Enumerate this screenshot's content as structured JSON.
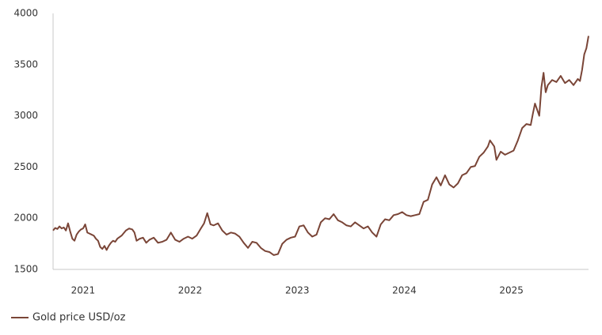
{
  "chart_data": {
    "type": "line",
    "x": [
      2020.72,
      2020.74,
      2020.76,
      2020.78,
      2020.8,
      2020.82,
      2020.84,
      2020.86,
      2020.88,
      2020.9,
      2020.92,
      2020.94,
      2020.96,
      2020.98,
      2021.0,
      2021.02,
      2021.04,
      2021.06,
      2021.08,
      2021.1,
      2021.12,
      2021.14,
      2021.16,
      2021.18,
      2021.2,
      2021.22,
      2021.24,
      2021.26,
      2021.28,
      2021.3,
      2021.32,
      2021.36,
      2021.4,
      2021.43,
      2021.46,
      2021.48,
      2021.5,
      2021.53,
      2021.56,
      2021.59,
      2021.62,
      2021.66,
      2021.7,
      2021.74,
      2021.78,
      2021.82,
      2021.86,
      2021.9,
      2021.94,
      2021.98,
      2022.02,
      2022.06,
      2022.1,
      2022.13,
      2022.16,
      2022.19,
      2022.22,
      2022.26,
      2022.3,
      2022.34,
      2022.38,
      2022.42,
      2022.46,
      2022.5,
      2022.54,
      2022.58,
      2022.62,
      2022.66,
      2022.7,
      2022.74,
      2022.78,
      2022.82,
      2022.86,
      2022.9,
      2022.94,
      2022.98,
      2023.02,
      2023.06,
      2023.1,
      2023.14,
      2023.18,
      2023.22,
      2023.26,
      2023.3,
      2023.34,
      2023.38,
      2023.42,
      2023.46,
      2023.5,
      2023.54,
      2023.58,
      2023.62,
      2023.66,
      2023.7,
      2023.74,
      2023.78,
      2023.82,
      2023.86,
      2023.9,
      2023.94,
      2023.98,
      2024.02,
      2024.06,
      2024.1,
      2024.14,
      2024.18,
      2024.22,
      2024.26,
      2024.3,
      2024.34,
      2024.38,
      2024.42,
      2024.46,
      2024.5,
      2024.54,
      2024.58,
      2024.62,
      2024.66,
      2024.7,
      2024.74,
      2024.78,
      2024.8,
      2024.84,
      2024.86,
      2024.9,
      2024.94,
      2024.98,
      2025.02,
      2025.06,
      2025.1,
      2025.14,
      2025.18,
      2025.2,
      2025.22,
      2025.26,
      2025.28,
      2025.3,
      2025.32,
      2025.34,
      2025.38,
      2025.42,
      2025.46,
      2025.5,
      2025.54,
      2025.58,
      2025.62,
      2025.64,
      2025.66,
      2025.68,
      2025.7,
      2025.72
    ],
    "series": [
      {
        "name": "Gold price USD/oz",
        "color": "#7a4537",
        "values": [
          1880,
          1905,
          1895,
          1920,
          1900,
          1910,
          1880,
          1950,
          1870,
          1800,
          1780,
          1840,
          1870,
          1890,
          1900,
          1940,
          1860,
          1850,
          1840,
          1830,
          1800,
          1780,
          1720,
          1700,
          1730,
          1690,
          1730,
          1760,
          1780,
          1770,
          1800,
          1830,
          1880,
          1900,
          1890,
          1860,
          1780,
          1800,
          1810,
          1760,
          1790,
          1810,
          1760,
          1770,
          1790,
          1860,
          1790,
          1770,
          1800,
          1820,
          1800,
          1830,
          1900,
          1950,
          2050,
          1940,
          1930,
          1950,
          1880,
          1840,
          1860,
          1850,
          1820,
          1760,
          1710,
          1770,
          1760,
          1710,
          1680,
          1670,
          1640,
          1650,
          1750,
          1790,
          1810,
          1820,
          1920,
          1930,
          1860,
          1820,
          1840,
          1960,
          2000,
          1990,
          2040,
          1980,
          1960,
          1930,
          1920,
          1960,
          1930,
          1900,
          1920,
          1860,
          1820,
          1940,
          1990,
          1980,
          2030,
          2040,
          2060,
          2030,
          2020,
          2030,
          2040,
          2160,
          2180,
          2330,
          2400,
          2320,
          2420,
          2330,
          2300,
          2340,
          2420,
          2440,
          2500,
          2510,
          2600,
          2640,
          2700,
          2760,
          2700,
          2570,
          2650,
          2620,
          2640,
          2660,
          2760,
          2880,
          2920,
          2910,
          3020,
          3120,
          3000,
          3280,
          3420,
          3230,
          3300,
          3350,
          3330,
          3390,
          3320,
          3350,
          3300,
          3360,
          3340,
          3450,
          3600,
          3660,
          3780
        ]
      }
    ],
    "xlim": [
      2020.72,
      2025.72
    ],
    "xticks": [
      2021,
      2022,
      2023,
      2024,
      2025
    ],
    "ylim": [
      1500,
      4000
    ],
    "yticks": [
      1500,
      2000,
      2500,
      3000,
      3500,
      4000
    ],
    "grid": false
  }
}
